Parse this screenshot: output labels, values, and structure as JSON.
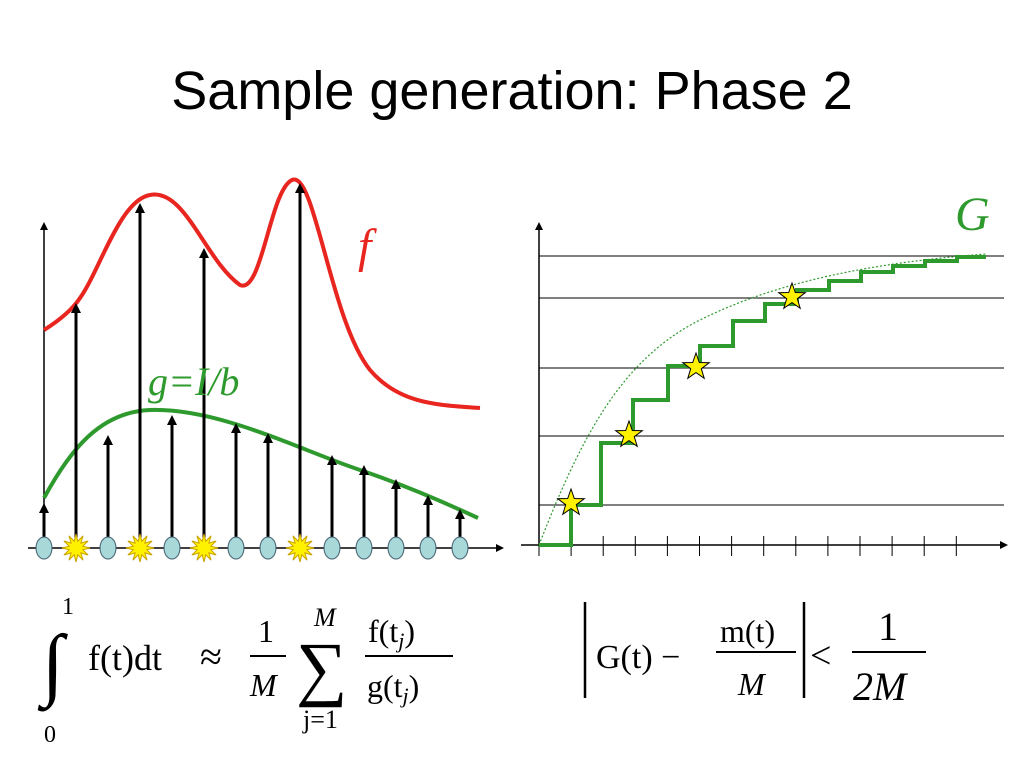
{
  "slide": {
    "title": "Sample generation: Phase 2"
  },
  "colors": {
    "f_curve": "#e8251e",
    "g_curve": "#2e9a2e",
    "sample_marker": "#a8d8d8",
    "star": "#fff200",
    "grid": "#000000"
  },
  "left_figure": {
    "f_label": "f",
    "g_label": "g=I/b",
    "sample_count": 14,
    "accepted_sample_indices": [
      1,
      3,
      5,
      8
    ],
    "marker_icon": "ellipse-marker",
    "accepted_icon": "starburst"
  },
  "right_figure": {
    "G_label": "G",
    "horizontal_levels": 5,
    "tick_count": 14,
    "star_icon": "star"
  },
  "formulas": {
    "left": {
      "int_upper": "1",
      "int_lower": "0",
      "integrand": "f(t)dt",
      "approx": "≈",
      "frac1_num": "1",
      "frac1_den": "M",
      "sum_upper": "M",
      "sum_lower": "j=1",
      "frac2_num": "f(t",
      "frac2_num_sub": "j",
      "frac2_den": "g(t",
      "frac2_den_sub": "j"
    },
    "right": {
      "G_expr": "G(t) −",
      "frac_num": "m(t)",
      "frac_den": "M",
      "less_than": "<",
      "rhs_num": "1",
      "rhs_den": "2M"
    }
  }
}
